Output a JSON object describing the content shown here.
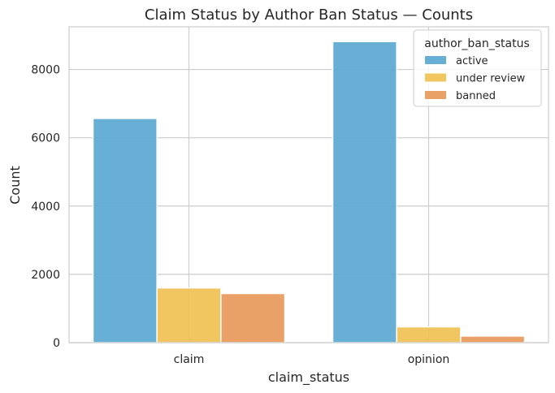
{
  "chart_data": {
    "type": "bar",
    "title": "Claim Status by Author Ban Status — Counts",
    "xlabel": "claim_status",
    "ylabel": "Count",
    "categories": [
      "claim",
      "opinion"
    ],
    "ylim": [
      0,
      9250
    ],
    "yticks": [
      0,
      2000,
      4000,
      6000,
      8000
    ],
    "grid": true,
    "legend": {
      "title": "author_ban_status",
      "placement": "top-right"
    },
    "series": [
      {
        "name": "active",
        "color": "#5ba8d1",
        "values": [
          6566,
          8817
        ]
      },
      {
        "name": "under review",
        "color": "#f0c154",
        "values": [
          1603,
          463
        ]
      },
      {
        "name": "banned",
        "color": "#e8995a",
        "values": [
          1439,
          193
        ]
      }
    ]
  }
}
